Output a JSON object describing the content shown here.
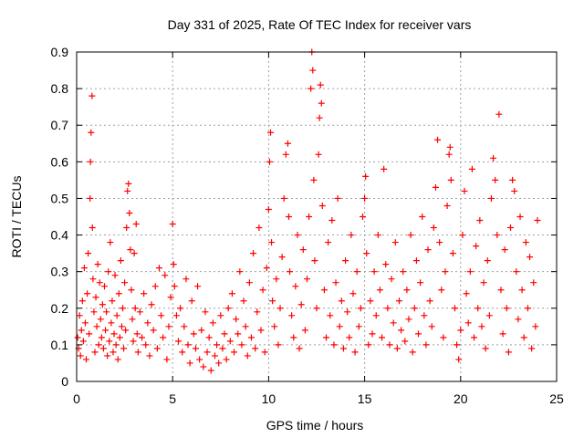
{
  "chart_data": {
    "type": "scatter",
    "title": "Day 331 of 2025, Rate Of TEC Index for receiver vars",
    "xlabel": "GPS time / hours",
    "ylabel": "ROTI / TECUs",
    "xlim": [
      0,
      25
    ],
    "ylim": [
      0,
      0.9
    ],
    "xticks": [
      0,
      5,
      10,
      15,
      20,
      25
    ],
    "xtick_labels": [
      "0",
      "5",
      "10",
      "15",
      "20",
      "25"
    ],
    "yticks": [
      0,
      0.1,
      0.2,
      0.3,
      0.4,
      0.5,
      0.6,
      0.7,
      0.8,
      0.9
    ],
    "ytick_labels": [
      "0",
      "0.1",
      "0.2",
      "0.3",
      "0.4",
      "0.5",
      "0.6",
      "0.7",
      "0.8",
      "0.9"
    ],
    "grid": true,
    "marker": "+",
    "color": "#ff0000",
    "series": [
      {
        "points": [
          [
            0.05,
            0.12
          ],
          [
            0.1,
            0.09
          ],
          [
            0.15,
            0.18
          ],
          [
            0.2,
            0.07
          ],
          [
            0.25,
            0.14
          ],
          [
            0.3,
            0.22
          ],
          [
            0.35,
            0.11
          ],
          [
            0.4,
            0.31
          ],
          [
            0.45,
            0.16
          ],
          [
            0.5,
            0.06
          ],
          [
            0.55,
            0.24
          ],
          [
            0.6,
            0.35
          ],
          [
            0.65,
            0.13
          ],
          [
            0.7,
            0.5
          ],
          [
            0.72,
            0.6
          ],
          [
            0.75,
            0.68
          ],
          [
            0.8,
            0.78
          ],
          [
            0.82,
            0.42
          ],
          [
            0.85,
            0.28
          ],
          [
            0.9,
            0.19
          ],
          [
            0.95,
            0.08
          ],
          [
            1.0,
            0.23
          ],
          [
            1.05,
            0.15
          ],
          [
            1.1,
            0.32
          ],
          [
            1.15,
            0.1
          ],
          [
            1.2,
            0.27
          ],
          [
            1.25,
            0.17
          ],
          [
            1.3,
            0.12
          ],
          [
            1.35,
            0.21
          ],
          [
            1.4,
            0.09
          ],
          [
            1.45,
            0.26
          ],
          [
            1.5,
            0.14
          ],
          [
            1.55,
            0.19
          ],
          [
            1.6,
            0.07
          ],
          [
            1.65,
            0.3
          ],
          [
            1.7,
            0.11
          ],
          [
            1.75,
            0.38
          ],
          [
            1.8,
            0.16
          ],
          [
            1.85,
            0.22
          ],
          [
            1.9,
            0.08
          ],
          [
            1.95,
            0.13
          ],
          [
            2.0,
            0.29
          ],
          [
            2.05,
            0.1
          ],
          [
            2.1,
            0.18
          ],
          [
            2.15,
            0.06
          ],
          [
            2.2,
            0.24
          ],
          [
            2.25,
            0.12
          ],
          [
            2.3,
            0.33
          ],
          [
            2.35,
            0.15
          ],
          [
            2.4,
            0.2
          ],
          [
            2.45,
            0.09
          ],
          [
            2.5,
            0.27
          ],
          [
            2.55,
            0.14
          ],
          [
            2.6,
            0.42
          ],
          [
            2.65,
            0.52
          ],
          [
            2.7,
            0.54
          ],
          [
            2.75,
            0.46
          ],
          [
            2.8,
            0.36
          ],
          [
            2.85,
            0.25
          ],
          [
            2.9,
            0.17
          ],
          [
            2.95,
            0.11
          ],
          [
            3.0,
            0.35
          ],
          [
            3.05,
            0.2
          ],
          [
            3.1,
            0.43
          ],
          [
            3.15,
            0.13
          ],
          [
            3.2,
            0.08
          ],
          [
            3.3,
            0.19
          ],
          [
            3.4,
            0.12
          ],
          [
            3.5,
            0.24
          ],
          [
            3.6,
            0.1
          ],
          [
            3.7,
            0.16
          ],
          [
            3.8,
            0.07
          ],
          [
            3.9,
            0.21
          ],
          [
            4.0,
            0.14
          ],
          [
            4.1,
            0.26
          ],
          [
            4.2,
            0.09
          ],
          [
            4.3,
            0.31
          ],
          [
            4.4,
            0.18
          ],
          [
            4.5,
            0.12
          ],
          [
            4.6,
            0.29
          ],
          [
            4.7,
            0.06
          ],
          [
            4.8,
            0.15
          ],
          [
            4.9,
            0.23
          ],
          [
            5.0,
            0.43
          ],
          [
            5.05,
            0.32
          ],
          [
            5.1,
            0.26
          ],
          [
            5.2,
            0.18
          ],
          [
            5.3,
            0.11
          ],
          [
            5.4,
            0.2
          ],
          [
            5.5,
            0.08
          ],
          [
            5.6,
            0.15
          ],
          [
            5.7,
            0.28
          ],
          [
            5.8,
            0.1
          ],
          [
            5.9,
            0.05
          ],
          [
            6.0,
            0.22
          ],
          [
            6.1,
            0.13
          ],
          [
            6.2,
            0.09
          ],
          [
            6.3,
            0.26
          ],
          [
            6.4,
            0.06
          ],
          [
            6.5,
            0.14
          ],
          [
            6.6,
            0.04
          ],
          [
            6.7,
            0.19
          ],
          [
            6.8,
            0.08
          ],
          [
            6.9,
            0.12
          ],
          [
            7.0,
            0.03
          ],
          [
            7.1,
            0.16
          ],
          [
            7.2,
            0.07
          ],
          [
            7.3,
            0.1
          ],
          [
            7.4,
            0.05
          ],
          [
            7.5,
            0.18
          ],
          [
            7.6,
            0.09
          ],
          [
            7.7,
            0.13
          ],
          [
            7.8,
            0.06
          ],
          [
            7.9,
            0.2
          ],
          [
            8.0,
            0.11
          ],
          [
            8.1,
            0.24
          ],
          [
            8.2,
            0.08
          ],
          [
            8.3,
            0.17
          ],
          [
            8.4,
            0.13
          ],
          [
            8.5,
            0.3
          ],
          [
            8.6,
            0.1
          ],
          [
            8.7,
            0.22
          ],
          [
            8.8,
            0.15
          ],
          [
            8.9,
            0.07
          ],
          [
            9.0,
            0.27
          ],
          [
            9.1,
            0.12
          ],
          [
            9.2,
            0.35
          ],
          [
            9.3,
            0.09
          ],
          [
            9.4,
            0.19
          ],
          [
            9.5,
            0.42
          ],
          [
            9.6,
            0.14
          ],
          [
            9.7,
            0.25
          ],
          [
            9.8,
            0.08
          ],
          [
            9.9,
            0.31
          ],
          [
            10.0,
            0.47
          ],
          [
            10.05,
            0.6
          ],
          [
            10.1,
            0.68
          ],
          [
            10.15,
            0.38
          ],
          [
            10.2,
            0.22
          ],
          [
            10.3,
            0.15
          ],
          [
            10.4,
            0.28
          ],
          [
            10.5,
            0.1
          ],
          [
            10.6,
            0.2
          ],
          [
            10.7,
            0.34
          ],
          [
            10.8,
            0.5
          ],
          [
            10.9,
            0.62
          ],
          [
            11.0,
            0.65
          ],
          [
            11.05,
            0.45
          ],
          [
            11.1,
            0.3
          ],
          [
            11.2,
            0.18
          ],
          [
            11.3,
            0.12
          ],
          [
            11.4,
            0.26
          ],
          [
            11.5,
            0.4
          ],
          [
            11.6,
            0.09
          ],
          [
            11.7,
            0.21
          ],
          [
            11.8,
            0.36
          ],
          [
            11.9,
            0.14
          ],
          [
            12.0,
            0.28
          ],
          [
            12.1,
            0.45
          ],
          [
            12.2,
            0.8
          ],
          [
            12.25,
            0.9
          ],
          [
            12.3,
            0.85
          ],
          [
            12.35,
            0.55
          ],
          [
            12.4,
            0.33
          ],
          [
            12.5,
            0.2
          ],
          [
            12.6,
            0.62
          ],
          [
            12.65,
            0.72
          ],
          [
            12.7,
            0.81
          ],
          [
            12.75,
            0.76
          ],
          [
            12.8,
            0.48
          ],
          [
            12.9,
            0.25
          ],
          [
            13.0,
            0.12
          ],
          [
            13.1,
            0.38
          ],
          [
            13.2,
            0.18
          ],
          [
            13.3,
            0.44
          ],
          [
            13.4,
            0.1
          ],
          [
            13.5,
            0.27
          ],
          [
            13.6,
            0.5
          ],
          [
            13.7,
            0.15
          ],
          [
            13.8,
            0.22
          ],
          [
            13.9,
            0.09
          ],
          [
            14.0,
            0.33
          ],
          [
            14.1,
            0.19
          ],
          [
            14.2,
            0.12
          ],
          [
            14.3,
            0.4
          ],
          [
            14.4,
            0.24
          ],
          [
            14.5,
            0.08
          ],
          [
            14.6,
            0.3
          ],
          [
            14.7,
            0.15
          ],
          [
            14.8,
            0.2
          ],
          [
            14.9,
            0.45
          ],
          [
            15.0,
            0.5
          ],
          [
            15.05,
            0.56
          ],
          [
            15.1,
            0.35
          ],
          [
            15.2,
            0.1
          ],
          [
            15.3,
            0.22
          ],
          [
            15.4,
            0.13
          ],
          [
            15.5,
            0.3
          ],
          [
            15.6,
            0.18
          ],
          [
            15.7,
            0.4
          ],
          [
            15.8,
            0.25
          ],
          [
            15.9,
            0.12
          ],
          [
            16.0,
            0.58
          ],
          [
            16.1,
            0.32
          ],
          [
            16.2,
            0.2
          ],
          [
            16.3,
            0.1
          ],
          [
            16.4,
            0.28
          ],
          [
            16.5,
            0.16
          ],
          [
            16.6,
            0.38
          ],
          [
            16.7,
            0.09
          ],
          [
            16.8,
            0.22
          ],
          [
            16.9,
            0.14
          ],
          [
            17.0,
            0.3
          ],
          [
            17.1,
            0.11
          ],
          [
            17.2,
            0.25
          ],
          [
            17.3,
            0.17
          ],
          [
            17.4,
            0.4
          ],
          [
            17.5,
            0.08
          ],
          [
            17.6,
            0.2
          ],
          [
            17.7,
            0.33
          ],
          [
            17.8,
            0.13
          ],
          [
            17.9,
            0.27
          ],
          [
            18.0,
            0.45
          ],
          [
            18.1,
            0.18
          ],
          [
            18.2,
            0.1
          ],
          [
            18.3,
            0.36
          ],
          [
            18.4,
            0.22
          ],
          [
            18.5,
            0.15
          ],
          [
            18.6,
            0.42
          ],
          [
            18.7,
            0.53
          ],
          [
            18.8,
            0.66
          ],
          [
            18.9,
            0.38
          ],
          [
            19.0,
            0.25
          ],
          [
            19.1,
            0.12
          ],
          [
            19.2,
            0.3
          ],
          [
            19.3,
            0.48
          ],
          [
            19.4,
            0.62
          ],
          [
            19.45,
            0.64
          ],
          [
            19.5,
            0.55
          ],
          [
            19.6,
            0.35
          ],
          [
            19.7,
            0.2
          ],
          [
            19.8,
            0.1
          ],
          [
            19.9,
            0.06
          ],
          [
            20.0,
            0.14
          ],
          [
            20.1,
            0.4
          ],
          [
            20.2,
            0.52
          ],
          [
            20.3,
            0.24
          ],
          [
            20.4,
            0.16
          ],
          [
            20.5,
            0.3
          ],
          [
            20.6,
            0.58
          ],
          [
            20.7,
            0.12
          ],
          [
            20.8,
            0.37
          ],
          [
            20.9,
            0.2
          ],
          [
            21.0,
            0.44
          ],
          [
            21.1,
            0.15
          ],
          [
            21.2,
            0.27
          ],
          [
            21.3,
            0.09
          ],
          [
            21.4,
            0.33
          ],
          [
            21.5,
            0.18
          ],
          [
            21.6,
            0.5
          ],
          [
            21.7,
            0.61
          ],
          [
            21.8,
            0.55
          ],
          [
            21.9,
            0.4
          ],
          [
            22.0,
            0.73
          ],
          [
            22.1,
            0.25
          ],
          [
            22.2,
            0.13
          ],
          [
            22.3,
            0.36
          ],
          [
            22.4,
            0.2
          ],
          [
            22.5,
            0.08
          ],
          [
            22.6,
            0.42
          ],
          [
            22.7,
            0.55
          ],
          [
            22.8,
            0.52
          ],
          [
            22.9,
            0.3
          ],
          [
            23.0,
            0.17
          ],
          [
            23.1,
            0.45
          ],
          [
            23.2,
            0.25
          ],
          [
            23.3,
            0.12
          ],
          [
            23.4,
            0.38
          ],
          [
            23.5,
            0.2
          ],
          [
            23.6,
            0.34
          ],
          [
            23.7,
            0.09
          ],
          [
            23.8,
            0.27
          ],
          [
            23.9,
            0.15
          ],
          [
            24.0,
            0.44
          ]
        ]
      }
    ]
  }
}
